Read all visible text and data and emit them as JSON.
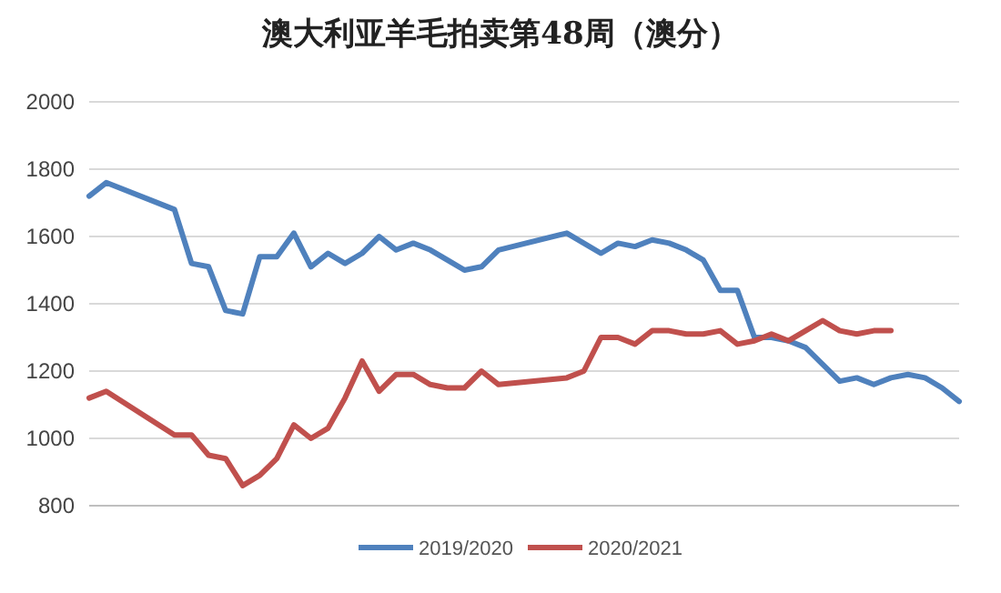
{
  "chart_data": {
    "type": "line",
    "title": "澳大利亚羊毛拍卖第48周（澳分）",
    "categories": [
      null,
      null,
      null,
      null,
      null,
      null,
      null,
      null,
      null,
      null,
      null,
      null,
      null,
      null,
      null,
      null,
      null,
      null,
      null,
      null,
      null,
      null,
      null,
      null,
      null,
      null,
      null,
      null,
      null,
      null,
      null,
      null,
      null,
      null,
      null,
      null,
      null,
      null,
      null,
      null,
      null,
      null,
      null,
      null,
      null,
      null,
      null,
      null,
      null,
      null,
      null,
      null
    ],
    "series": [
      {
        "name": "2019/2020",
        "color": "#4f81bd",
        "values": [
          1720,
          1760,
          null,
          null,
          null,
          1680,
          1520,
          1510,
          1380,
          1370,
          1540,
          1540,
          1610,
          1510,
          1550,
          1520,
          1550,
          1600,
          1560,
          1580,
          1560,
          1530,
          1500,
          1510,
          1560,
          null,
          null,
          null,
          1610,
          null,
          1550,
          1580,
          1570,
          1590,
          1580,
          1560,
          1530,
          1440,
          1440,
          1300,
          1300,
          1290,
          1270,
          1220,
          1170,
          1180,
          1160,
          1180,
          1190,
          1180,
          1150,
          1110
        ]
      },
      {
        "name": "2020/2021",
        "color": "#c0504d",
        "values": [
          1120,
          1140,
          null,
          null,
          null,
          1010,
          1010,
          950,
          940,
          860,
          890,
          940,
          1040,
          1000,
          1030,
          1120,
          1230,
          1140,
          1190,
          1190,
          1160,
          1150,
          1150,
          1200,
          1160,
          null,
          null,
          null,
          1180,
          1200,
          1300,
          1300,
          1280,
          1320,
          1320,
          1310,
          1310,
          1320,
          1280,
          1290,
          1310,
          1290,
          1320,
          1350,
          1320,
          1310,
          1320,
          1320,
          null,
          null,
          null,
          null
        ]
      }
    ],
    "ylim": [
      800,
      2000
    ],
    "yticks": [
      800,
      1000,
      1200,
      1400,
      1600,
      1800,
      2000
    ],
    "grid": "y",
    "legend": "bottom",
    "marker": "none",
    "line_style": "solid"
  }
}
